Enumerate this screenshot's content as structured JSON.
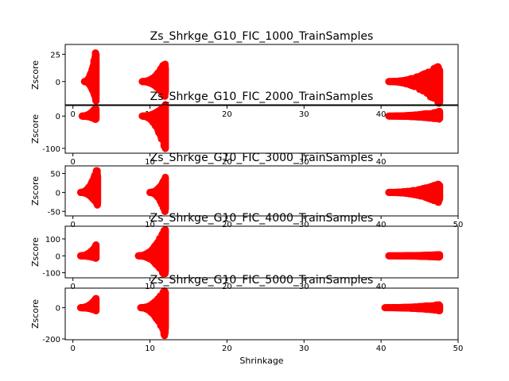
{
  "chart_data": [
    {
      "type": "scatter",
      "title": "Zs_Shrkge_G10_FIC_1000_TrainSamples",
      "xlabel": "",
      "ylabel": "Zscore",
      "xlim": [
        -1,
        50
      ],
      "ylim": [
        -22,
        34
      ],
      "xticks": [
        "0",
        "10",
        "20",
        "30",
        "40"
      ],
      "yticks": [
        25,
        0
      ],
      "marker_color": "#ff0000",
      "clusters": [
        {
          "x_range": [
            1.5,
            3.0
          ],
          "y_min": -18,
          "y_max": 30
        },
        {
          "x_range": [
            9.0,
            12.0
          ],
          "y_min": -15,
          "y_max": 19
        },
        {
          "x_range": [
            41.0,
            47.6
          ],
          "y_min": -22,
          "y_max": 16
        }
      ]
    },
    {
      "type": "scatter",
      "title": "Zs_Shrkge_G10_FIC_2000_TrainSamples",
      "xlabel": "",
      "ylabel": "Zscore",
      "xlim": [
        -1,
        50
      ],
      "ylim": [
        -115,
        35
      ],
      "xticks": [
        "0",
        "10",
        "20",
        "30",
        "40"
      ],
      "yticks": [
        0,
        -100
      ],
      "marker_color": "#ff0000",
      "clusters": [
        {
          "x_range": [
            1.2,
            3.0
          ],
          "y_min": -12,
          "y_max": 28
        },
        {
          "x_range": [
            9.0,
            12.0
          ],
          "y_min": -110,
          "y_max": 35
        },
        {
          "x_range": [
            41.0,
            47.6
          ],
          "y_min": -10,
          "y_max": 15
        }
      ]
    },
    {
      "type": "scatter",
      "title": "Zs_Shrkge_G10_FIC_3000_TrainSamples",
      "xlabel": "",
      "ylabel": "Zscore",
      "xlim": [
        -1,
        50
      ],
      "ylim": [
        -62,
        70
      ],
      "xticks": [
        "0",
        "10",
        "20",
        "30",
        "40",
        "50"
      ],
      "yticks": [
        50,
        0,
        -50
      ],
      "marker_color": "#ff0000",
      "clusters": [
        {
          "x_range": [
            1.0,
            3.2
          ],
          "y_min": -35,
          "y_max": 70
        },
        {
          "x_range": [
            10.0,
            12.0
          ],
          "y_min": -58,
          "y_max": 40
        },
        {
          "x_range": [
            41.0,
            47.6
          ],
          "y_min": -28,
          "y_max": 25
        }
      ]
    },
    {
      "type": "scatter",
      "title": "Zs_Shrkge_G10_FIC_4000_TrainSamples",
      "xlabel": "",
      "ylabel": "Zscore",
      "xlim": [
        -1,
        50
      ],
      "ylim": [
        -130,
        175
      ],
      "xticks": [
        "0",
        "10",
        "20",
        "30",
        "40"
      ],
      "yticks": [
        100,
        0,
        -100
      ],
      "marker_color": "#ff0000",
      "clusters": [
        {
          "x_range": [
            1.0,
            3.0
          ],
          "y_min": -15,
          "y_max": 65
        },
        {
          "x_range": [
            8.5,
            12.0
          ],
          "y_min": -130,
          "y_max": 175
        },
        {
          "x_range": [
            41.0,
            47.6
          ],
          "y_min": -8,
          "y_max": 8
        }
      ]
    },
    {
      "type": "scatter",
      "title": "Zs_Shrkge_G10_FIC_5000_TrainSamples",
      "xlabel": "Shrinkage",
      "ylabel": "Zscore",
      "xlim": [
        -1,
        50
      ],
      "ylim": [
        -205,
        125
      ],
      "xticks": [
        "0",
        "10",
        "20",
        "30",
        "40",
        "50"
      ],
      "yticks": [
        0,
        -200
      ],
      "marker_color": "#ff0000",
      "clusters": [
        {
          "x_range": [
            1.0,
            3.0
          ],
          "y_min": -20,
          "y_max": 60
        },
        {
          "x_range": [
            8.8,
            12.0
          ],
          "y_min": -200,
          "y_max": 125
        },
        {
          "x_range": [
            40.5,
            47.6
          ],
          "y_min": -20,
          "y_max": 20
        }
      ]
    }
  ]
}
